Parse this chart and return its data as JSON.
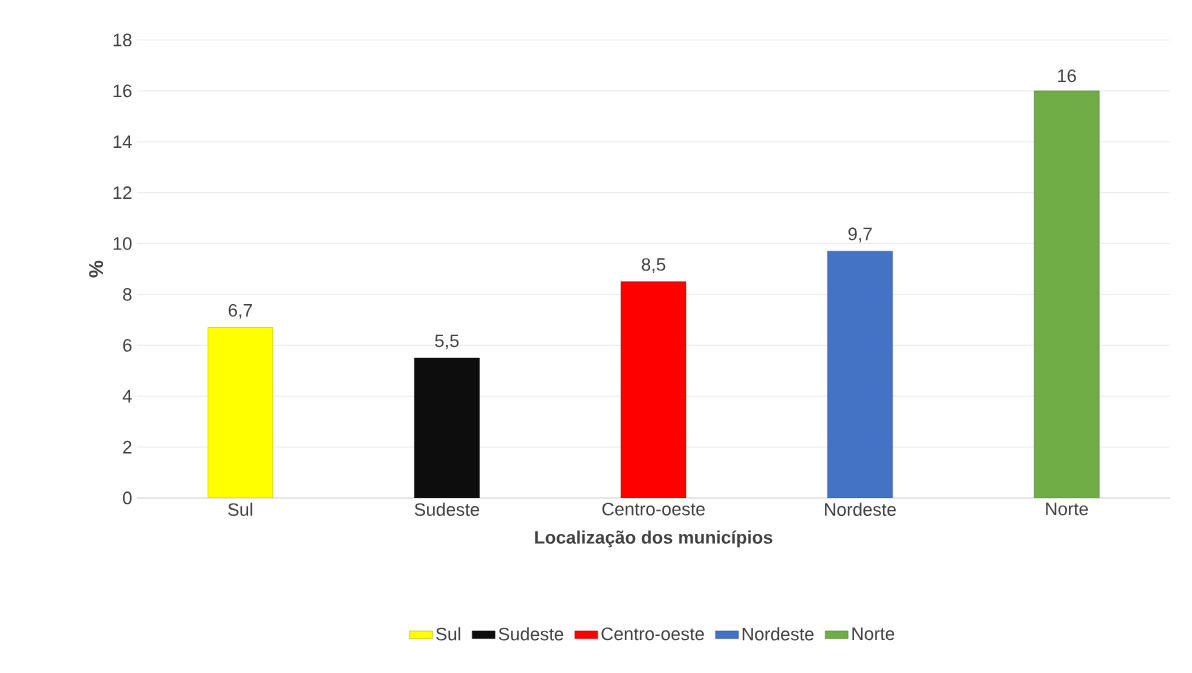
{
  "chart_data": {
    "type": "bar",
    "xlabel": "Localização dos municípios",
    "ylabel": "%",
    "categories": [
      "Sul",
      "Sudeste",
      "Centro-oeste",
      "Nordeste",
      "Norte"
    ],
    "series": [
      {
        "name": "Sul",
        "color": "#ffff00",
        "values": [
          6.7,
          null,
          null,
          null,
          null
        ],
        "value_labels": [
          "6,7",
          null,
          null,
          null,
          null
        ]
      },
      {
        "name": "Sudeste",
        "color": "#0d0d0d",
        "values": [
          null,
          5.5,
          null,
          null,
          null
        ],
        "value_labels": [
          null,
          "5,5",
          null,
          null,
          null
        ]
      },
      {
        "name": "Centro-oeste",
        "color": "#ff0000",
        "values": [
          null,
          null,
          8.5,
          null,
          null
        ],
        "value_labels": [
          null,
          null,
          "8,5",
          null,
          null
        ]
      },
      {
        "name": "Nordeste",
        "color": "#4472c4",
        "values": [
          null,
          null,
          null,
          9.7,
          null
        ],
        "value_labels": [
          null,
          null,
          null,
          "9,7",
          null
        ]
      },
      {
        "name": "Norte",
        "color": "#70ad47",
        "values": [
          null,
          null,
          null,
          null,
          16
        ],
        "value_labels": [
          null,
          null,
          null,
          null,
          "16"
        ]
      }
    ],
    "ylim": [
      0,
      18
    ],
    "yticks": [
      0,
      2,
      4,
      6,
      8,
      10,
      12,
      14,
      16,
      18
    ],
    "grid": "y",
    "legend": "bottom"
  }
}
